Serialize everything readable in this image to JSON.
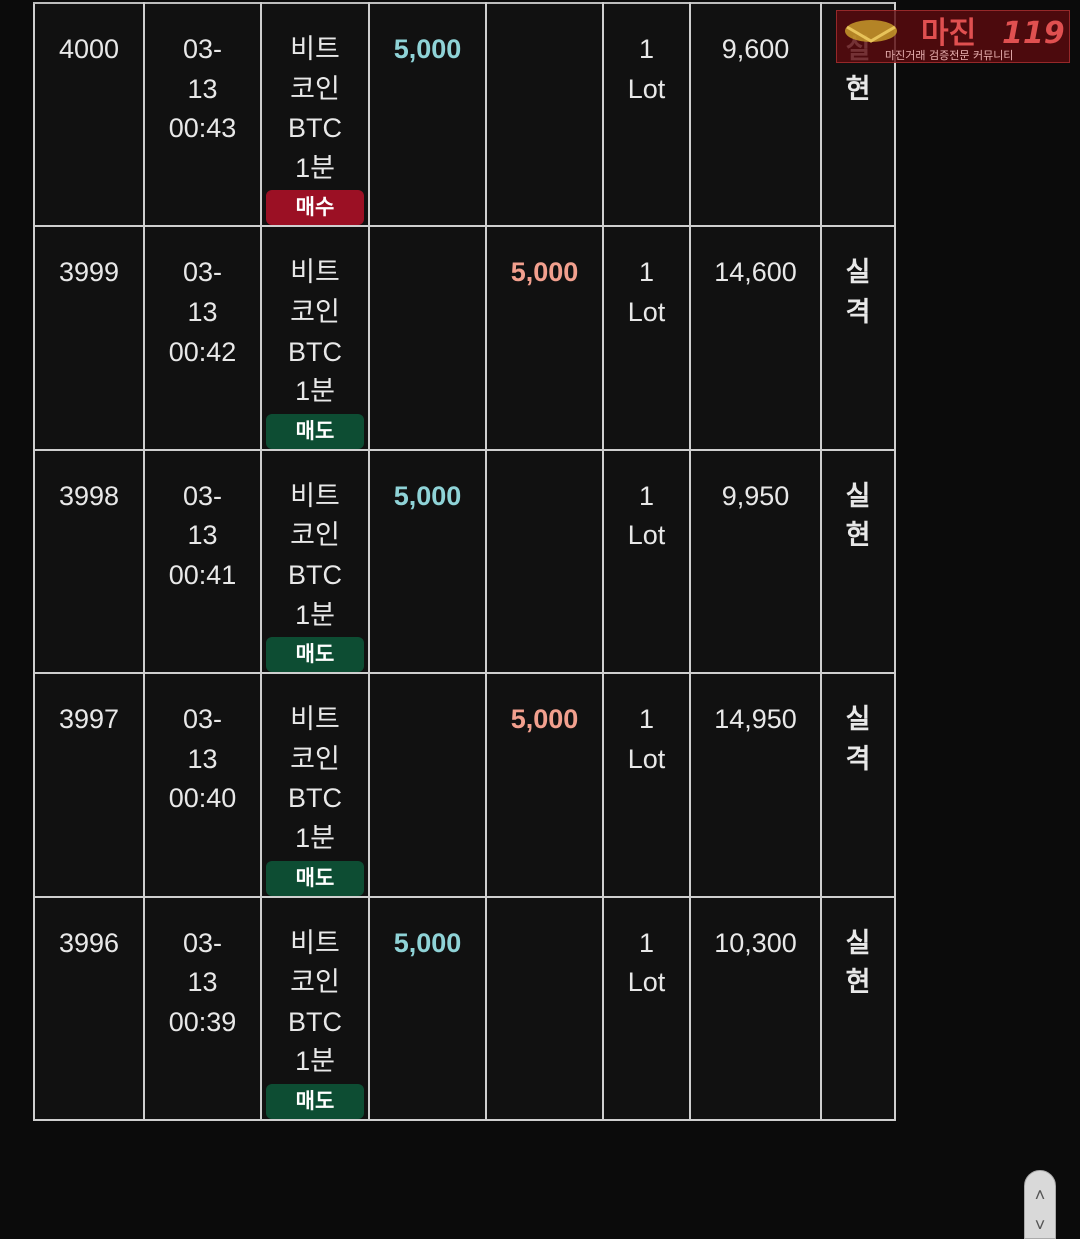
{
  "rows": [
    {
      "id": "4000",
      "date": "03-",
      "date2": "13",
      "time": "00:43",
      "name1": "비트",
      "name2": "코인",
      "symbol": "BTC",
      "interval": "1분",
      "side": "매수",
      "side_type": "buy",
      "buy_amount": "5,000",
      "sell_amount": "",
      "lot_qty": "1",
      "lot_unit": "Lot",
      "balance": "9,600",
      "result1": "실",
      "result2": "현",
      "result_type": "real"
    },
    {
      "id": "3999",
      "date": "03-",
      "date2": "13",
      "time": "00:42",
      "name1": "비트",
      "name2": "코인",
      "symbol": "BTC",
      "interval": "1분",
      "side": "매도",
      "side_type": "sell",
      "buy_amount": "",
      "sell_amount": "5,000",
      "lot_qty": "1",
      "lot_unit": "Lot",
      "balance": "14,600",
      "result1": "실",
      "result2": "격",
      "result_type": "loss"
    },
    {
      "id": "3998",
      "date": "03-",
      "date2": "13",
      "time": "00:41",
      "name1": "비트",
      "name2": "코인",
      "symbol": "BTC",
      "interval": "1분",
      "side": "매도",
      "side_type": "sell",
      "buy_amount": "5,000",
      "sell_amount": "",
      "lot_qty": "1",
      "lot_unit": "Lot",
      "balance": "9,950",
      "result1": "실",
      "result2": "현",
      "result_type": "real"
    },
    {
      "id": "3997",
      "date": "03-",
      "date2": "13",
      "time": "00:40",
      "name1": "비트",
      "name2": "코인",
      "symbol": "BTC",
      "interval": "1분",
      "side": "매도",
      "side_type": "sell",
      "buy_amount": "",
      "sell_amount": "5,000",
      "lot_qty": "1",
      "lot_unit": "Lot",
      "balance": "14,950",
      "result1": "실",
      "result2": "격",
      "result_type": "loss"
    },
    {
      "id": "3996",
      "date": "03-",
      "date2": "13",
      "time": "00:39",
      "name1": "비트",
      "name2": "코인",
      "symbol": "BTC",
      "interval": "1분",
      "side": "매도",
      "side_type": "sell",
      "buy_amount": "5,000",
      "sell_amount": "",
      "lot_qty": "1",
      "lot_unit": "Lot",
      "balance": "10,300",
      "result1": "실",
      "result2": "현",
      "result_type": "real"
    }
  ],
  "watermark": {
    "title": "마진",
    "number": "119",
    "subtitle": "마진거래 검증전문 커뮤니티"
  },
  "scroller": {
    "up_icon": "chevron-up-icon",
    "down_icon": "chevron-down-icon"
  },
  "colors": {
    "buy_amount": "#8fd3d7",
    "sell_amount": "#f2a08e",
    "badge_buy": "#9b1024",
    "badge_sell": "#0d4d33",
    "result_real": "#8fc6ea",
    "result_loss": "#f2a08e"
  }
}
